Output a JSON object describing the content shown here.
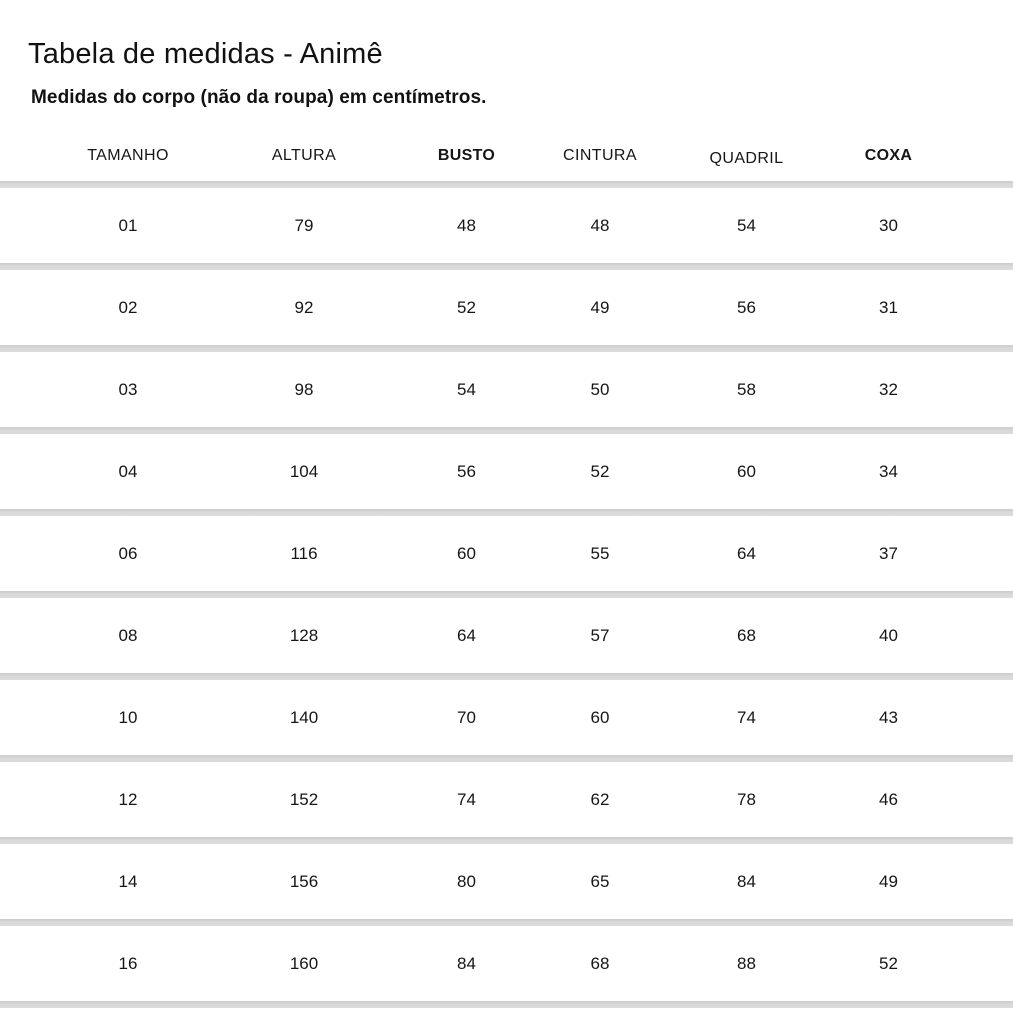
{
  "page": {
    "title": "Tabela de medidas - Animê",
    "subtitle": "Medidas do corpo (não da roupa) em centímetros."
  },
  "table": {
    "columns": [
      {
        "label": "TAMANHO",
        "bold": false
      },
      {
        "label": "ALTURA",
        "bold": false
      },
      {
        "label": "BUSTO",
        "bold": true
      },
      {
        "label": "CINTURA",
        "bold": false
      },
      {
        "label": "QUADRIL",
        "bold": false
      },
      {
        "label": "COXA",
        "bold": true
      }
    ],
    "rows": [
      {
        "cells": [
          "01",
          "79",
          "48",
          "48",
          "54",
          "30"
        ]
      },
      {
        "cells": [
          "02",
          "92",
          "52",
          "49",
          "56",
          "31"
        ]
      },
      {
        "cells": [
          "03",
          "98",
          "54",
          "50",
          "58",
          "32"
        ]
      },
      {
        "cells": [
          "04",
          "104",
          "56",
          "52",
          "60",
          "34"
        ]
      },
      {
        "cells": [
          "06",
          "116",
          "60",
          "55",
          "64",
          "37"
        ]
      },
      {
        "cells": [
          "08",
          "128",
          "64",
          "57",
          "68",
          "40"
        ]
      },
      {
        "cells": [
          "10",
          "140",
          "70",
          "60",
          "74",
          "43"
        ]
      },
      {
        "cells": [
          "12",
          "152",
          "74",
          "62",
          "78",
          "46"
        ]
      },
      {
        "cells": [
          "14",
          "156",
          "80",
          "65",
          "84",
          "49"
        ]
      },
      {
        "cells": [
          "16",
          "160",
          "84",
          "68",
          "88",
          "52"
        ]
      }
    ]
  },
  "colors": {
    "background": "#ffffff",
    "text": "#161616",
    "divider": "#d9d9d9"
  }
}
